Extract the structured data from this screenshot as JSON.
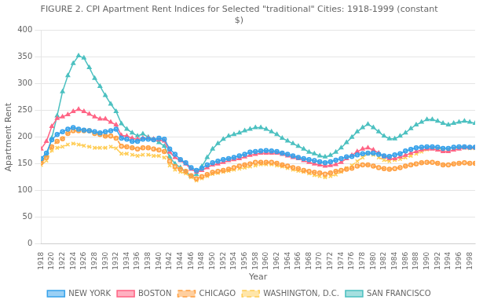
{
  "chart_data": {
    "type": "line",
    "title": "FIGURE 2. CPI Apartment Rent Indices for Selected \"traditional\" Cities: 1918-1999 (constant\n$)",
    "xlabel": "Year",
    "ylabel": "Apartment Rent",
    "x": [
      1918,
      1919,
      1920,
      1921,
      1922,
      1923,
      1924,
      1925,
      1926,
      1927,
      1928,
      1929,
      1930,
      1931,
      1932,
      1933,
      1934,
      1935,
      1936,
      1937,
      1938,
      1939,
      1940,
      1941,
      1942,
      1943,
      1944,
      1945,
      1946,
      1947,
      1948,
      1949,
      1950,
      1951,
      1952,
      1953,
      1954,
      1955,
      1956,
      1957,
      1958,
      1959,
      1960,
      1961,
      1962,
      1963,
      1964,
      1965,
      1966,
      1967,
      1968,
      1969,
      1970,
      1971,
      1972,
      1973,
      1974,
      1975,
      1976,
      1977,
      1978,
      1979,
      1980,
      1981,
      1982,
      1983,
      1984,
      1985,
      1986,
      1987,
      1988,
      1989,
      1990,
      1991,
      1992,
      1993,
      1994,
      1995,
      1996,
      1997,
      1998,
      1999
    ],
    "series": [
      {
        "name": "NEW YORK",
        "marker": "circle",
        "line_style": "solid",
        "values": [
          160,
          170,
          195,
          205,
          210,
          215,
          218,
          215,
          213,
          212,
          210,
          208,
          210,
          212,
          215,
          198,
          196,
          192,
          192,
          196,
          196,
          195,
          198,
          196,
          178,
          168,
          158,
          152,
          143,
          138,
          142,
          148,
          152,
          155,
          158,
          160,
          162,
          165,
          168,
          172,
          173,
          174,
          175,
          174,
          173,
          170,
          168,
          165,
          162,
          160,
          158,
          156,
          154,
          152,
          154,
          157,
          160,
          163,
          164,
          167,
          169,
          170,
          170,
          168,
          165,
          164,
          167,
          169,
          174,
          177,
          180,
          181,
          182,
          182,
          181,
          179,
          179,
          181,
          182,
          182,
          181,
          181
        ]
      },
      {
        "name": "BOSTON",
        "marker": "triangle",
        "line_style": "solid",
        "values": [
          178,
          192,
          220,
          235,
          238,
          242,
          248,
          252,
          248,
          243,
          238,
          234,
          234,
          228,
          223,
          203,
          202,
          198,
          196,
          198,
          198,
          196,
          195,
          193,
          172,
          162,
          156,
          150,
          140,
          135,
          138,
          143,
          148,
          150,
          153,
          156,
          158,
          160,
          163,
          166,
          168,
          170,
          170,
          170,
          170,
          168,
          165,
          162,
          160,
          156,
          153,
          150,
          148,
          146,
          147,
          149,
          153,
          160,
          166,
          173,
          178,
          180,
          176,
          170,
          163,
          160,
          160,
          163,
          166,
          170,
          173,
          176,
          178,
          178,
          176,
          173,
          173,
          176,
          178,
          180,
          180,
          180
        ]
      },
      {
        "name": "CHICAGO",
        "marker": "circle",
        "line_style": "dashed",
        "values": [
          152,
          162,
          182,
          192,
          197,
          207,
          212,
          212,
          212,
          212,
          207,
          205,
          202,
          202,
          198,
          183,
          182,
          180,
          178,
          180,
          180,
          178,
          176,
          173,
          155,
          145,
          140,
          136,
          128,
          122,
          126,
          130,
          134,
          136,
          138,
          140,
          143,
          146,
          148,
          150,
          153,
          153,
          153,
          153,
          151,
          148,
          146,
          143,
          141,
          138,
          136,
          134,
          133,
          131,
          133,
          136,
          138,
          140,
          142,
          146,
          148,
          148,
          146,
          143,
          141,
          140,
          141,
          143,
          146,
          148,
          150,
          152,
          153,
          153,
          151,
          148,
          148,
          150,
          151,
          152,
          151,
          151
        ]
      },
      {
        "name": "WASHINGTON, D.C.",
        "marker": "x",
        "line_style": "dashed",
        "values": [
          148,
          156,
          175,
          180,
          182,
          186,
          188,
          186,
          184,
          182,
          180,
          180,
          180,
          182,
          179,
          169,
          169,
          167,
          165,
          167,
          167,
          165,
          165,
          162,
          147,
          139,
          135,
          132,
          125,
          119,
          123,
          127,
          131,
          133,
          135,
          137,
          139,
          141,
          143,
          145,
          147,
          149,
          149,
          149,
          147,
          145,
          142,
          139,
          137,
          135,
          132,
          129,
          127,
          125,
          127,
          130,
          135,
          142,
          147,
          155,
          162,
          169,
          167,
          162,
          157,
          155,
          157,
          159,
          162,
          165,
          169,
          173,
          177,
          179,
          179,
          177,
          177,
          179,
          180,
          180,
          179,
          179
        ]
      },
      {
        "name": "SAN FRANCISCO",
        "marker": "triangle",
        "line_style": "solid",
        "values": [
          155,
          165,
          198,
          240,
          285,
          315,
          338,
          352,
          348,
          330,
          310,
          295,
          278,
          262,
          248,
          225,
          215,
          208,
          202,
          206,
          200,
          196,
          190,
          183,
          163,
          150,
          143,
          135,
          127,
          130,
          145,
          162,
          178,
          188,
          196,
          202,
          205,
          208,
          212,
          215,
          218,
          218,
          215,
          210,
          205,
          198,
          193,
          188,
          183,
          178,
          172,
          169,
          165,
          163,
          166,
          172,
          180,
          190,
          200,
          210,
          218,
          224,
          218,
          210,
          202,
          197,
          197,
          202,
          208,
          216,
          223,
          228,
          233,
          233,
          230,
          226,
          223,
          226,
          228,
          230,
          228,
          226
        ]
      }
    ],
    "xlim": [
      1918,
      1999
    ],
    "xticks": [
      1918,
      1920,
      1922,
      1924,
      1926,
      1928,
      1930,
      1932,
      1934,
      1936,
      1938,
      1940,
      1942,
      1944,
      1946,
      1948,
      1950,
      1952,
      1954,
      1956,
      1958,
      1960,
      1962,
      1964,
      1966,
      1968,
      1970,
      1972,
      1974,
      1976,
      1978,
      1980,
      1982,
      1984,
      1986,
      1988,
      1990,
      1992,
      1994,
      1996,
      1998
    ],
    "ylim": [
      0,
      400
    ],
    "yticks": [
      0,
      50,
      100,
      150,
      200,
      250,
      300,
      350,
      400
    ],
    "grid": "y",
    "legend": "bottom"
  }
}
